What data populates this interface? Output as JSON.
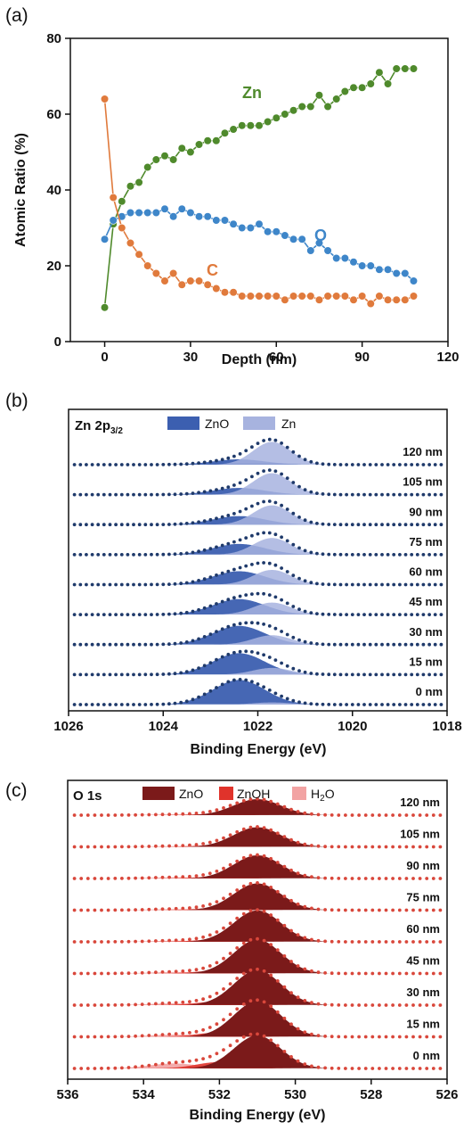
{
  "chart_data": [
    {
      "panel": "(a)",
      "type": "line",
      "xlabel": "Depth (nm)",
      "ylabel": "Atomic Ratio (%)",
      "xlim": [
        -12,
        120
      ],
      "ylim": [
        0,
        80
      ],
      "xticks": [
        "0",
        "30",
        "60",
        "90",
        "120"
      ],
      "yticks": [
        "0",
        "20",
        "40",
        "60",
        "80"
      ],
      "series": [
        {
          "name": "Zn",
          "color": "#4f8a2c",
          "x": [
            0,
            3,
            6,
            9,
            12,
            15,
            18,
            21,
            24,
            27,
            30,
            33,
            36,
            39,
            42,
            45,
            48,
            51,
            54,
            57,
            60,
            63,
            66,
            69,
            72,
            75,
            78,
            81,
            84,
            87,
            90,
            93,
            96,
            99,
            102,
            105,
            108
          ],
          "y": [
            9,
            31,
            37,
            41,
            42,
            46,
            48,
            49,
            48,
            51,
            50,
            52,
            53,
            53,
            55,
            56,
            57,
            57,
            57,
            58,
            59,
            60,
            61,
            62,
            62,
            65,
            62,
            64,
            66,
            67,
            67,
            68,
            71,
            68,
            72,
            72,
            72
          ]
        },
        {
          "name": "O",
          "color": "#3e86c9",
          "x": [
            0,
            3,
            6,
            9,
            12,
            15,
            18,
            21,
            24,
            27,
            30,
            33,
            36,
            39,
            42,
            45,
            48,
            51,
            54,
            57,
            60,
            63,
            66,
            69,
            72,
            75,
            78,
            81,
            84,
            87,
            90,
            93,
            96,
            99,
            102,
            105,
            108
          ],
          "y": [
            27,
            32,
            33,
            34,
            34,
            34,
            34,
            35,
            33,
            35,
            34,
            33,
            33,
            32,
            32,
            31,
            30,
            30,
            31,
            29,
            29,
            28,
            27,
            27,
            24,
            26,
            24,
            22,
            22,
            21,
            20,
            20,
            19,
            19,
            18,
            18,
            16
          ]
        },
        {
          "name": "C",
          "color": "#e07a3c",
          "x": [
            0,
            3,
            6,
            9,
            12,
            15,
            18,
            21,
            24,
            27,
            30,
            33,
            36,
            39,
            42,
            45,
            48,
            51,
            54,
            57,
            60,
            63,
            66,
            69,
            72,
            75,
            78,
            81,
            84,
            87,
            90,
            93,
            96,
            99,
            102,
            105,
            108
          ],
          "y": [
            64,
            38,
            30,
            26,
            23,
            20,
            18,
            16,
            18,
            15,
            16,
            16,
            15,
            14,
            13,
            13,
            12,
            12,
            12,
            12,
            12,
            11,
            12,
            12,
            12,
            11,
            12,
            12,
            12,
            11,
            12,
            10,
            12,
            11,
            11,
            11,
            12
          ]
        }
      ]
    },
    {
      "panel": "(b)",
      "type": "area",
      "title_main": "Zn 2p",
      "title_sub": "3/2",
      "xlabel": "Binding Energy (eV)",
      "xlim": [
        1026,
        1018
      ],
      "xticks": [
        "1026",
        "1024",
        "1022",
        "1020",
        "1018"
      ],
      "series": [
        {
          "name": "ZnO",
          "color": "#3c5fb0",
          "center_eV": 1022.4
        },
        {
          "name": "Zn",
          "color": "#a7b3df",
          "center_eV": 1021.7
        }
      ],
      "data_color": "#1f3a6b",
      "spectra": [
        {
          "depth": "120 nm",
          "zno": 0.2,
          "zn": 0.85
        },
        {
          "depth": "105 nm",
          "zno": 0.25,
          "zn": 0.8
        },
        {
          "depth": "90 nm",
          "zno": 0.32,
          "zn": 0.72
        },
        {
          "depth": "75 nm",
          "zno": 0.4,
          "zn": 0.62
        },
        {
          "depth": "60 nm",
          "zno": 0.5,
          "zn": 0.55
        },
        {
          "depth": "45 nm",
          "zno": 0.58,
          "zn": 0.45
        },
        {
          "depth": "30 nm",
          "zno": 0.7,
          "zn": 0.35
        },
        {
          "depth": "15 nm",
          "zno": 0.8,
          "zn": 0.25
        },
        {
          "depth": "0 nm",
          "zno": 0.92,
          "zn": 0.08
        }
      ]
    },
    {
      "panel": "(c)",
      "type": "area",
      "title_main": "O 1s",
      "xlabel": "Binding Energy (eV)",
      "xlim": [
        536,
        526
      ],
      "xticks": [
        "536",
        "534",
        "532",
        "530",
        "528",
        "526"
      ],
      "series": [
        {
          "name": "ZnO",
          "color": "#7b1a1a",
          "center_eV": 531.0
        },
        {
          "name": "ZnOH",
          "color": "#e0332b",
          "center_eV": 532.0
        },
        {
          "name": "H2O",
          "color": "#f2a3a3",
          "center_eV": 533.2
        }
      ],
      "legend_h2o": {
        "main": "H",
        "sub": "2",
        "tail": "O"
      },
      "data_color": "#d9473b",
      "spectra": [
        {
          "depth": "120 nm",
          "zno": 0.45,
          "znoh": 0.04,
          "h2o": 0.02
        },
        {
          "depth": "105 nm",
          "zno": 0.55,
          "znoh": 0.05,
          "h2o": 0.02
        },
        {
          "depth": "90 nm",
          "zno": 0.65,
          "znoh": 0.05,
          "h2o": 0.03
        },
        {
          "depth": "75 nm",
          "zno": 0.75,
          "znoh": 0.06,
          "h2o": 0.03
        },
        {
          "depth": "60 nm",
          "zno": 0.88,
          "znoh": 0.07,
          "h2o": 0.03
        },
        {
          "depth": "45 nm",
          "zno": 0.95,
          "znoh": 0.08,
          "h2o": 0.04
        },
        {
          "depth": "30 nm",
          "zno": 0.98,
          "znoh": 0.1,
          "h2o": 0.05
        },
        {
          "depth": "15 nm",
          "zno": 1.0,
          "znoh": 0.12,
          "h2o": 0.06
        },
        {
          "depth": "0 nm",
          "zno": 0.92,
          "znoh": 0.18,
          "h2o": 0.14
        }
      ]
    }
  ]
}
